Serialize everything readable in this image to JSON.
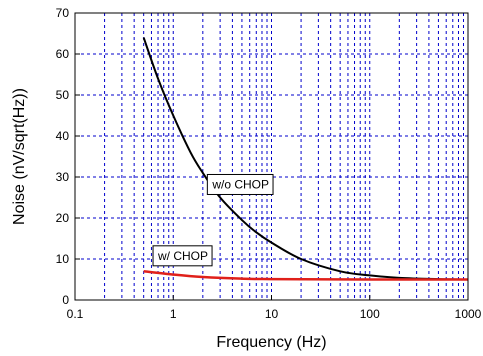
{
  "chart_data": {
    "type": "line",
    "title": "",
    "xlabel": "Frequency (Hz)",
    "ylabel": "Noise (nV/sqrt(Hz))",
    "x_scale": "log",
    "xlim": [
      0.1,
      1000
    ],
    "ylim": [
      0,
      70
    ],
    "x_ticks": [
      "0.1",
      "1",
      "10",
      "100",
      "1000"
    ],
    "y_ticks": [
      "0",
      "10",
      "20",
      "30",
      "40",
      "50",
      "60",
      "70"
    ],
    "grid": true,
    "grid_style": "dashed",
    "grid_color": "#0000cc",
    "series": [
      {
        "label": "w/o CHOP",
        "color": "#000000",
        "x": [
          0.5,
          0.7,
          1,
          1.5,
          2,
          3,
          5,
          7,
          10,
          20,
          50,
          100,
          200,
          500,
          1000
        ],
        "y": [
          64,
          54,
          45,
          36,
          31,
          25,
          19.5,
          16.5,
          14,
          10,
          7,
          6,
          5.4,
          5.1,
          5
        ]
      },
      {
        "label": "w/ CHOP",
        "color": "#e0201a",
        "x": [
          0.5,
          1,
          2,
          5,
          10,
          100,
          1000
        ],
        "y": [
          7,
          6.2,
          5.6,
          5.2,
          5.1,
          5,
          5
        ]
      }
    ]
  }
}
